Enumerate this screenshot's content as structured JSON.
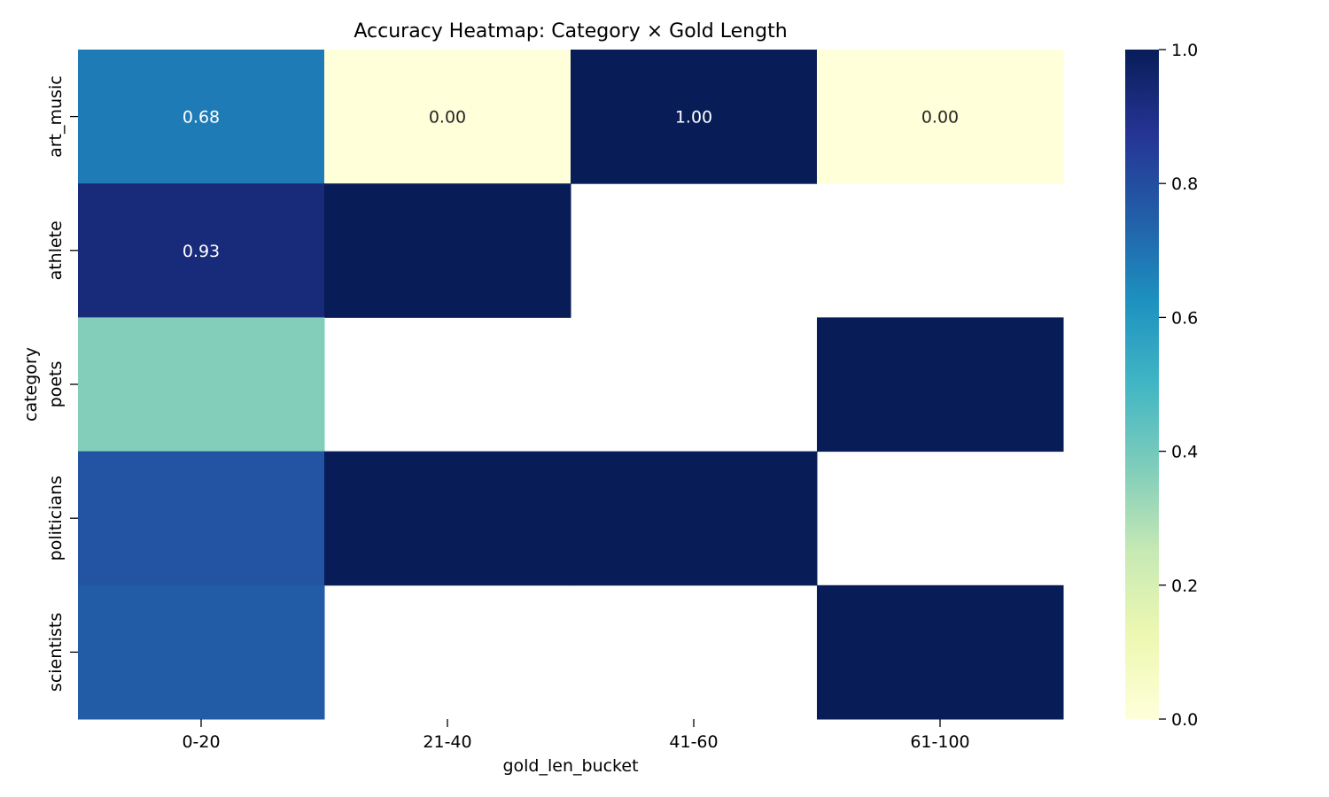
{
  "chart_data": {
    "type": "heatmap",
    "title": "Accuracy Heatmap: Category × Gold Length",
    "xlabel": "gold_len_bucket",
    "ylabel": "category",
    "x_categories": [
      "0-20",
      "21-40",
      "41-60",
      "61-100"
    ],
    "y_categories": [
      "art_music",
      "athlete",
      "poets",
      "politicians",
      "scientists"
    ],
    "values": [
      [
        0.68,
        0.0,
        1.0,
        0.0
      ],
      [
        0.93,
        1.0,
        null,
        null
      ],
      [
        0.37,
        null,
        null,
        1.0
      ],
      [
        0.78,
        1.0,
        1.0,
        null
      ],
      [
        0.76,
        null,
        null,
        1.0
      ]
    ],
    "annotations": [
      [
        "0.68",
        "0.00",
        "1.00",
        "0.00"
      ],
      [
        "0.93",
        "",
        "",
        ""
      ],
      [
        "",
        "",
        "",
        ""
      ],
      [
        "",
        "",
        "",
        ""
      ],
      [
        "",
        "",
        "",
        ""
      ]
    ],
    "colormap": "YlGnBu",
    "vmin": 0.0,
    "vmax": 1.0,
    "colorbar_ticks": [
      "0.0",
      "0.2",
      "0.4",
      "0.6",
      "0.8",
      "1.0"
    ],
    "colorbar_tick_values": [
      0.0,
      0.2,
      0.4,
      0.6,
      0.8,
      1.0
    ],
    "missing_color": "#ffffff",
    "annotation_light_color": "#ffffff",
    "annotation_dark_color": "#262626",
    "grid": false
  }
}
